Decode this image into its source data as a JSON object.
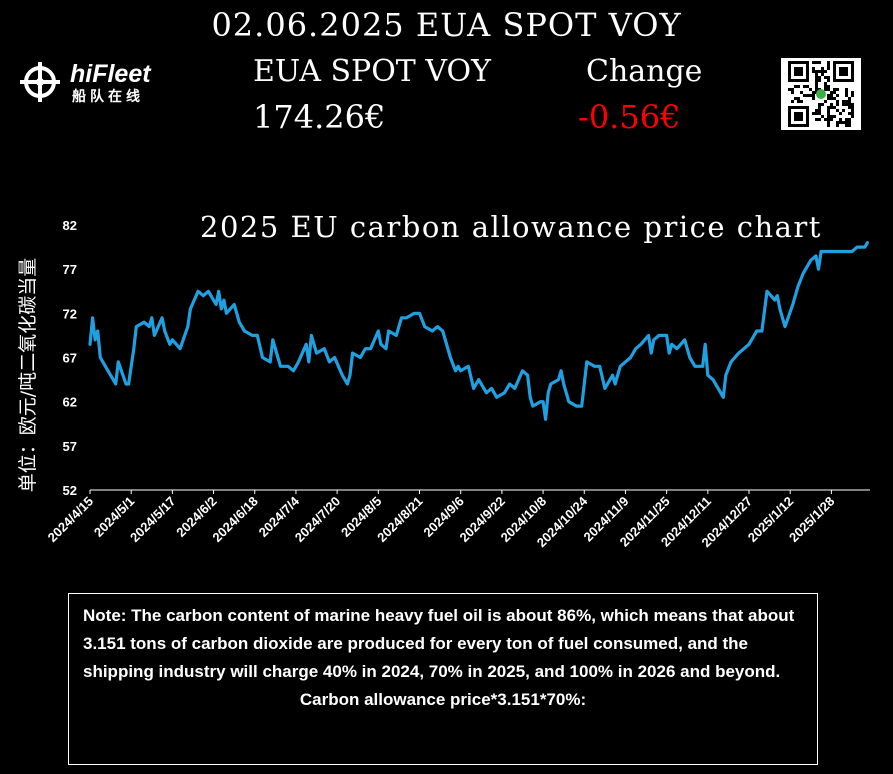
{
  "header": {
    "title": "02.06.2025 EUA SPOT VOY",
    "label_left": "EUA SPOT VOY",
    "label_right": "Change",
    "price": "174.26€",
    "change": "-0.56€",
    "change_color": "#ff0000"
  },
  "logo": {
    "name": "hiFleet",
    "subtitle": "船队在线",
    "icon": "ship-wheel-icon"
  },
  "qr": {
    "icon": "qr-code-icon"
  },
  "chart_data": {
    "type": "line",
    "title": "2025 EU carbon allowance price chart",
    "ylabel": "单位：欧元/吨二氧化碳当量",
    "ylim": [
      52,
      82
    ],
    "yticks": [
      52,
      57,
      62,
      67,
      72,
      77,
      82
    ],
    "xlim": [
      "2024/4/15",
      "2025/2/12"
    ],
    "xticks": [
      "2024/4/15",
      "2024/5/1",
      "2024/5/17",
      "2024/6/2",
      "2024/6/18",
      "2024/7/4",
      "2024/7/20",
      "2024/8/5",
      "2024/8/21",
      "2024/9/6",
      "2024/9/22",
      "2024/10/8",
      "2024/10/24",
      "2024/11/9",
      "2024/11/25",
      "2024/12/11",
      "2024/12/27",
      "2025/1/12",
      "2025/1/28"
    ],
    "line_color": "#1fa0e0",
    "series": [
      {
        "points": [
          [
            "2024/4/15",
            68.5
          ],
          [
            "2024/4/16",
            71.5
          ],
          [
            "2024/4/17",
            69
          ],
          [
            "2024/4/18",
            70
          ],
          [
            "2024/4/19",
            67
          ],
          [
            "2024/4/22",
            65.5
          ],
          [
            "2024/4/24",
            64.5
          ],
          [
            "2024/4/25",
            64
          ],
          [
            "2024/4/26",
            66.5
          ],
          [
            "2024/4/29",
            64
          ],
          [
            "2024/4/30",
            64
          ],
          [
            "2024/5/2",
            68
          ],
          [
            "2024/5/3",
            70.5
          ],
          [
            "2024/5/6",
            71
          ],
          [
            "2024/5/8",
            70.5
          ],
          [
            "2024/5/9",
            71.5
          ],
          [
            "2024/5/10",
            69.5
          ],
          [
            "2024/5/13",
            71.5
          ],
          [
            "2024/5/14",
            70
          ],
          [
            "2024/5/16",
            68.5
          ],
          [
            "2024/5/17",
            69
          ],
          [
            "2024/5/20",
            68
          ],
          [
            "2024/5/23",
            70.5
          ],
          [
            "2024/5/24",
            72.5
          ],
          [
            "2024/5/27",
            74.5
          ],
          [
            "2024/5/29",
            74
          ],
          [
            "2024/5/31",
            74.5
          ],
          [
            "2024/6/3",
            73
          ],
          [
            "2024/6/4",
            74.5
          ],
          [
            "2024/6/5",
            72.5
          ],
          [
            "2024/6/6",
            73.5
          ],
          [
            "2024/6/7",
            72
          ],
          [
            "2024/6/10",
            73
          ],
          [
            "2024/6/12",
            71
          ],
          [
            "2024/6/14",
            70
          ],
          [
            "2024/6/17",
            69.5
          ],
          [
            "2024/6/19",
            69.5
          ],
          [
            "2024/6/21",
            67
          ],
          [
            "2024/6/24",
            66.5
          ],
          [
            "2024/6/25",
            69
          ],
          [
            "2024/6/27",
            67
          ],
          [
            "2024/6/28",
            66
          ],
          [
            "2024/7/1",
            66
          ],
          [
            "2024/7/3",
            65.5
          ],
          [
            "2024/7/5",
            66.5
          ],
          [
            "2024/7/8",
            68.5
          ],
          [
            "2024/7/9",
            66.5
          ],
          [
            "2024/7/10",
            69.5
          ],
          [
            "2024/7/12",
            67.5
          ],
          [
            "2024/7/15",
            68
          ],
          [
            "2024/7/17",
            66.5
          ],
          [
            "2024/7/19",
            67
          ],
          [
            "2024/7/22",
            65
          ],
          [
            "2024/7/24",
            64
          ],
          [
            "2024/7/25",
            65
          ],
          [
            "2024/7/26",
            67.5
          ],
          [
            "2024/7/29",
            67
          ],
          [
            "2024/7/31",
            68
          ],
          [
            "2024/8/2",
            68
          ],
          [
            "2024/8/5",
            70
          ],
          [
            "2024/8/6",
            68.5
          ],
          [
            "2024/8/8",
            68
          ],
          [
            "2024/8/9",
            70
          ],
          [
            "2024/8/12",
            69.5
          ],
          [
            "2024/8/14",
            71.5
          ],
          [
            "2024/8/16",
            71.5
          ],
          [
            "2024/8/19",
            72
          ],
          [
            "2024/8/21",
            72
          ],
          [
            "2024/8/23",
            70.5
          ],
          [
            "2024/8/26",
            70
          ],
          [
            "2024/8/28",
            70.5
          ],
          [
            "2024/8/30",
            70
          ],
          [
            "2024/9/2",
            67
          ],
          [
            "2024/9/4",
            65.5
          ],
          [
            "2024/9/5",
            66
          ],
          [
            "2024/9/6",
            65.5
          ],
          [
            "2024/9/9",
            66
          ],
          [
            "2024/9/11",
            63.5
          ],
          [
            "2024/9/13",
            64.5
          ],
          [
            "2024/9/16",
            63
          ],
          [
            "2024/9/18",
            63.5
          ],
          [
            "2024/9/20",
            62.5
          ],
          [
            "2024/9/23",
            63
          ],
          [
            "2024/9/25",
            64
          ],
          [
            "2024/9/27",
            63.5
          ],
          [
            "2024/9/30",
            65.5
          ],
          [
            "2024/10/2",
            65
          ],
          [
            "2024/10/3",
            62.5
          ],
          [
            "2024/10/4",
            61.5
          ],
          [
            "2024/10/7",
            62
          ],
          [
            "2024/10/8",
            62
          ],
          [
            "2024/10/9",
            60
          ],
          [
            "2024/10/10",
            63
          ],
          [
            "2024/10/11",
            64
          ],
          [
            "2024/10/14",
            64.5
          ],
          [
            "2024/10/15",
            65.5
          ],
          [
            "2024/10/16",
            64
          ],
          [
            "2024/10/18",
            62
          ],
          [
            "2024/10/21",
            61.5
          ],
          [
            "2024/10/23",
            61.5
          ],
          [
            "2024/10/25",
            66.5
          ],
          [
            "2024/10/28",
            66
          ],
          [
            "2024/10/30",
            66
          ],
          [
            "2024/11/1",
            63.5
          ],
          [
            "2024/11/4",
            65
          ],
          [
            "2024/11/5",
            64
          ],
          [
            "2024/11/7",
            66
          ],
          [
            "2024/11/11",
            67
          ],
          [
            "2024/11/13",
            68
          ],
          [
            "2024/11/15",
            68.5
          ],
          [
            "2024/11/18",
            69.5
          ],
          [
            "2024/11/19",
            67.5
          ],
          [
            "2024/11/20",
            69
          ],
          [
            "2024/11/22",
            69.5
          ],
          [
            "2024/11/25",
            69.5
          ],
          [
            "2024/11/26",
            67.5
          ],
          [
            "2024/11/27",
            68.5
          ],
          [
            "2024/11/29",
            68
          ],
          [
            "2024/12/2",
            69
          ],
          [
            "2024/12/3",
            68
          ],
          [
            "2024/12/4",
            67
          ],
          [
            "2024/12/6",
            66
          ],
          [
            "2024/12/9",
            66
          ],
          [
            "2024/12/10",
            68.5
          ],
          [
            "2024/12/11",
            65
          ],
          [
            "2024/12/13",
            64.5
          ],
          [
            "2024/12/16",
            63
          ],
          [
            "2024/12/17",
            62.5
          ],
          [
            "2024/12/18",
            65
          ],
          [
            "2024/12/20",
            66.5
          ],
          [
            "2024/12/23",
            67.5
          ],
          [
            "2024/12/27",
            68.5
          ],
          [
            "2024/12/30",
            70
          ],
          [
            "2025/1/1",
            70
          ],
          [
            "2025/1/3",
            74.5
          ],
          [
            "2025/1/6",
            73.5
          ],
          [
            "2025/1/7",
            74
          ],
          [
            "2025/1/8",
            72.5
          ],
          [
            "2025/1/10",
            70.5
          ],
          [
            "2025/1/13",
            73
          ],
          [
            "2025/1/15",
            75
          ],
          [
            "2025/1/17",
            76.5
          ],
          [
            "2025/1/20",
            78
          ],
          [
            "2025/1/22",
            78.5
          ],
          [
            "2025/1/23",
            77
          ],
          [
            "2025/1/24",
            79
          ],
          [
            "2025/1/27",
            79
          ],
          [
            "2025/1/30",
            79
          ],
          [
            "2025/2/3",
            79
          ],
          [
            "2025/2/5",
            79
          ],
          [
            "2025/2/7",
            79.5
          ],
          [
            "2025/2/10",
            79.5
          ],
          [
            "2025/2/11",
            80
          ]
        ]
      }
    ]
  },
  "note": {
    "body": "Note: The carbon content of marine heavy fuel oil is about 86%, which means that about 3.151 tons of carbon dioxide are produced for every ton of fuel consumed, and the shipping industry will charge 40% in 2024, 70% in 2025, and 100% in 2026 and beyond.",
    "formula": "Carbon allowance price*3.151*70%:"
  }
}
